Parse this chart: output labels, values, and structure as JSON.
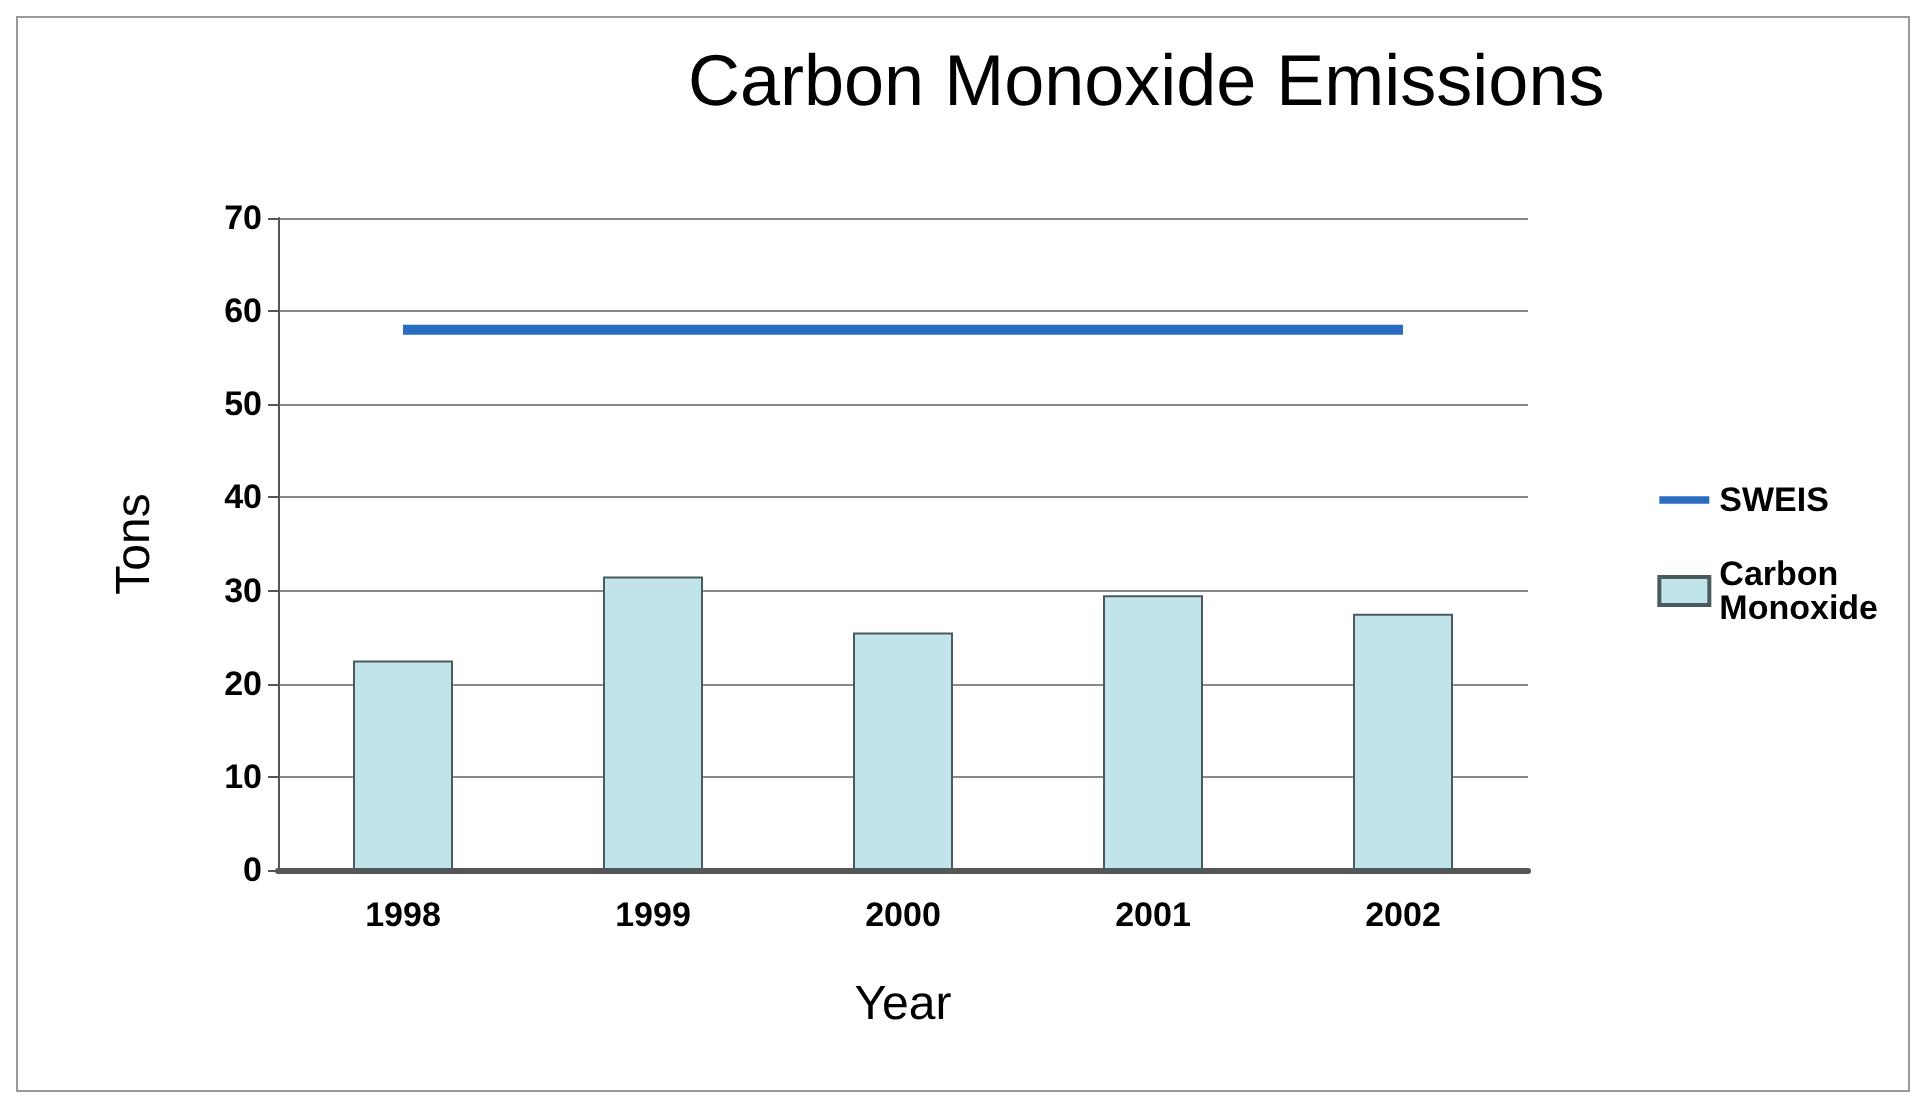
{
  "chart_data": {
    "type": "bar",
    "title": "Carbon Monoxide Emissions",
    "xlabel": "Year",
    "ylabel": "Tons",
    "categories": [
      "1998",
      "1999",
      "2000",
      "2001",
      "2002"
    ],
    "series": [
      {
        "name": "SWEIS",
        "type": "line",
        "color": "#2a6cbf",
        "values": [
          58,
          58,
          58,
          58,
          58
        ]
      },
      {
        "name": "Carbon Monoxide",
        "color": "#c0e4ea",
        "values": [
          22.5,
          31.5,
          25.5,
          29.5,
          27.5
        ]
      }
    ],
    "ylim": [
      0,
      70
    ],
    "yticks": [
      0,
      10,
      20,
      30,
      40,
      50,
      60,
      70
    ],
    "grid": "y",
    "legend": "right",
    "marker": "none"
  }
}
